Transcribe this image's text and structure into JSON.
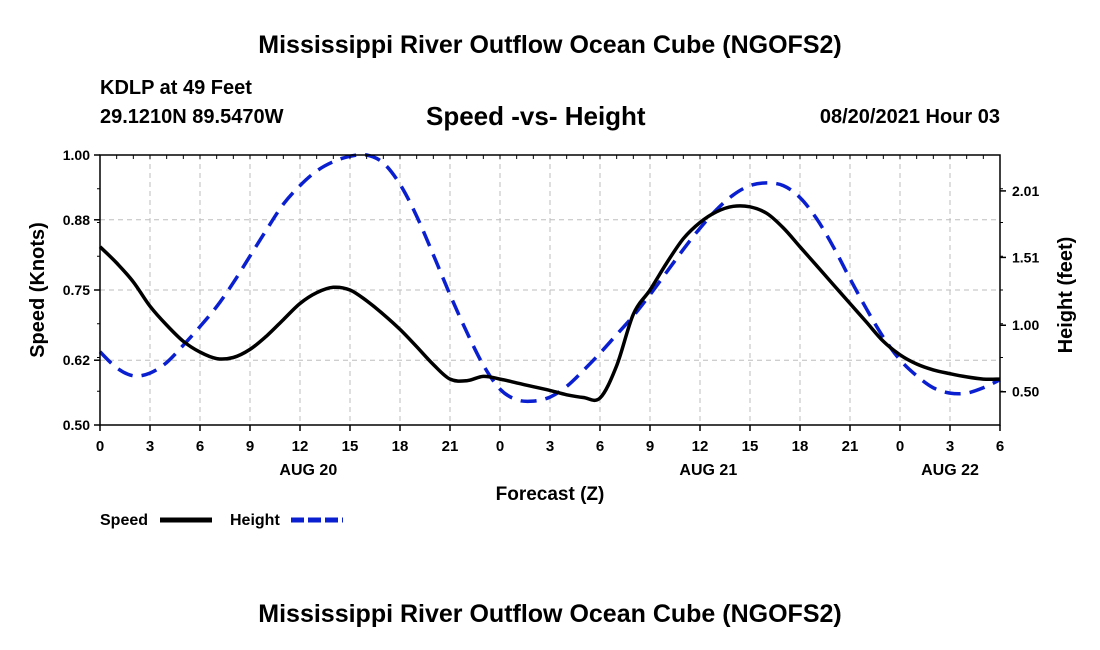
{
  "page": {
    "title_top": "Mississippi River Outflow Ocean Cube (NGOFS2)",
    "title_bottom": "Mississippi River Outflow Ocean Cube (NGOFS2)",
    "station": "KDLP at 49 Feet",
    "coords": "29.1210N  89.5470W",
    "subtitle": "Speed -vs- Height",
    "datetime": "08/20/2021 Hour 03"
  },
  "chart_data": {
    "type": "line",
    "xlabel": "Forecast (Z)",
    "ylabel_left": "Speed (Knots)",
    "ylabel_right": "Height (feet)",
    "x_range": [
      0,
      54
    ],
    "x_unit": "hours since 08/20/2021 00Z",
    "x_ticks": [
      0,
      3,
      6,
      9,
      12,
      15,
      18,
      21,
      24,
      27,
      30,
      33,
      36,
      39,
      42,
      45,
      48,
      51,
      54
    ],
    "x_tick_labels": [
      "0",
      "3",
      "6",
      "9",
      "12",
      "15",
      "18",
      "21",
      "0",
      "3",
      "6",
      "9",
      "12",
      "15",
      "18",
      "21",
      "0",
      "3",
      "6"
    ],
    "date_labels": [
      {
        "hour": 12.5,
        "label": "AUG 20"
      },
      {
        "hour": 36.5,
        "label": "AUG 21"
      },
      {
        "hour": 51,
        "label": "AUG 22"
      }
    ],
    "ylim_left": [
      0.5,
      1.0
    ],
    "y_ticks_left": [
      0.5,
      0.62,
      0.75,
      0.88,
      1.0
    ],
    "y_tick_labels_left": [
      "0.50",
      "0.62",
      "0.75",
      "0.88",
      "1.00"
    ],
    "ylim_right": [
      0.25,
      2.28
    ],
    "y_ticks_right": [
      0.5,
      1.0,
      1.51,
      2.01
    ],
    "y_tick_labels_right": [
      "0.50",
      "1.00",
      "1.51",
      "2.01"
    ],
    "grid": true,
    "legend": "bottom-left",
    "series": [
      {
        "name": "Speed",
        "axis": "left",
        "color": "#000000",
        "dash": "solid",
        "x": [
          0,
          1,
          2,
          3,
          4,
          5,
          6,
          7,
          8,
          9,
          10,
          11,
          12,
          13,
          14,
          15,
          16,
          17,
          18,
          19,
          20,
          21,
          22,
          23,
          24,
          25,
          26,
          27,
          28,
          29,
          30,
          31,
          32,
          33,
          34,
          35,
          36,
          37,
          38,
          39,
          40,
          41,
          42,
          43,
          44,
          45,
          46,
          47,
          48,
          49,
          50,
          51,
          52,
          53,
          54
        ],
        "values": [
          0.83,
          0.8,
          0.765,
          0.72,
          0.685,
          0.655,
          0.635,
          0.623,
          0.625,
          0.64,
          0.665,
          0.695,
          0.725,
          0.745,
          0.755,
          0.75,
          0.73,
          0.705,
          0.677,
          0.645,
          0.612,
          0.585,
          0.582,
          0.59,
          0.585,
          0.578,
          0.571,
          0.564,
          0.556,
          0.551,
          0.55,
          0.61,
          0.705,
          0.75,
          0.8,
          0.845,
          0.875,
          0.895,
          0.905,
          0.904,
          0.892,
          0.865,
          0.83,
          0.795,
          0.76,
          0.725,
          0.69,
          0.655,
          0.63,
          0.613,
          0.602,
          0.595,
          0.589,
          0.585,
          0.585
        ]
      },
      {
        "name": "Height",
        "axis": "right",
        "color": "#0a1fd0",
        "dash": "dashed",
        "x": [
          0,
          1,
          2,
          3,
          4,
          5,
          6,
          7,
          8,
          9,
          10,
          11,
          12,
          13,
          14,
          15,
          16,
          17,
          18,
          19,
          20,
          21,
          22,
          23,
          24,
          25,
          26,
          27,
          28,
          29,
          30,
          31,
          32,
          33,
          34,
          35,
          36,
          37,
          38,
          39,
          40,
          41,
          42,
          43,
          44,
          45,
          46,
          47,
          48,
          49,
          50,
          51,
          52,
          53,
          54
        ],
        "values": [
          0.8,
          0.68,
          0.62,
          0.64,
          0.72,
          0.85,
          0.99,
          1.14,
          1.32,
          1.52,
          1.72,
          1.91,
          2.05,
          2.16,
          2.23,
          2.27,
          2.28,
          2.22,
          2.06,
          1.82,
          1.53,
          1.23,
          0.95,
          0.7,
          0.52,
          0.44,
          0.43,
          0.46,
          0.54,
          0.66,
          0.79,
          0.93,
          1.07,
          1.23,
          1.4,
          1.57,
          1.73,
          1.87,
          1.98,
          2.05,
          2.07,
          2.05,
          1.96,
          1.8,
          1.59,
          1.35,
          1.12,
          0.91,
          0.74,
          0.62,
          0.53,
          0.49,
          0.49,
          0.53,
          0.59
        ]
      }
    ]
  }
}
